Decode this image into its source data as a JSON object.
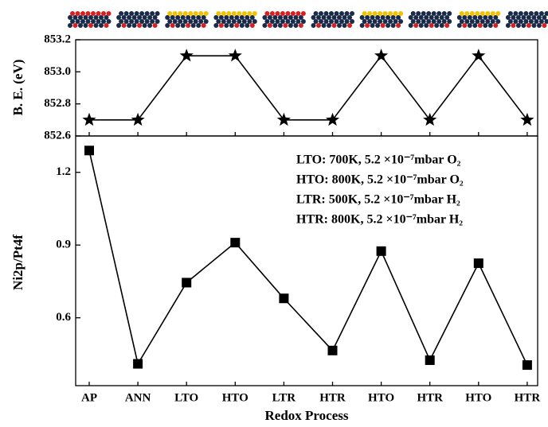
{
  "chart_data": [
    {
      "type": "line",
      "marker": "star",
      "color": "#000000",
      "ylabel": "B. E. (eV)",
      "values": [
        852.7,
        852.7,
        853.1,
        853.1,
        852.7,
        852.7,
        853.1,
        852.7,
        853.1,
        852.7
      ],
      "ylim": [
        852.6,
        853.2
      ],
      "yticks": [
        852.6,
        852.8,
        {
          "value": 853,
          "label": "853.0"
        },
        853.2
      ]
    },
    {
      "type": "line",
      "marker": "square",
      "color": "#000000",
      "ylabel": "Ni2p/Pt4f",
      "xlabel": "Redox Process",
      "categories": [
        "AP",
        "ANN",
        "LTO",
        "HTO",
        "LTR",
        "HTR",
        "HTO",
        "HTR",
        "HTO",
        "HTR"
      ],
      "values": [
        1.29,
        0.41,
        0.745,
        0.91,
        0.68,
        0.465,
        0.875,
        0.425,
        0.825,
        0.405
      ],
      "ylim": [
        0.32,
        1.35
      ],
      "yticks": [
        0.6,
        0.9,
        1.2
      ],
      "annotations": [
        "LTO: 700K, 5.2 ×10⁻⁷mbar O₂",
        "HTO: 800K, 5.2 ×10⁻⁷mbar O₂",
        "LTR: 500K, 5.2 ×10⁻⁷mbar H₂",
        "HTR: 800K, 5.2 ×10⁻⁷mbar H₂"
      ]
    }
  ]
}
